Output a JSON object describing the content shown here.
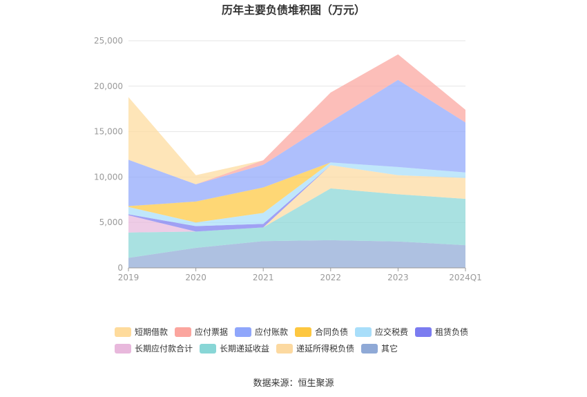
{
  "chart_data": {
    "type": "area",
    "stacked": true,
    "title": "历年主要负债堆积图（万元）",
    "categories": [
      "2019",
      "2020",
      "2021",
      "2022",
      "2023",
      "2024Q1"
    ],
    "y_ticks": [
      "0",
      "5,000",
      "10,000",
      "15,000",
      "20,000",
      "25,000"
    ],
    "ylim": [
      0,
      25000
    ],
    "grid": true,
    "legend_position": "bottom",
    "series": [
      {
        "name": "其它",
        "color": "#8fa9d6",
        "values": [
          1100,
          2200,
          2950,
          3050,
          2900,
          2500
        ]
      },
      {
        "name": "长期递延收益",
        "color": "#88d6d6",
        "values": [
          2800,
          1800,
          1500,
          5700,
          5200,
          5100
        ]
      },
      {
        "name": "长期应付款合计",
        "color": "#e8b8dc",
        "values": [
          1900,
          0,
          0,
          0,
          0,
          0
        ]
      },
      {
        "name": "递延所得税负债",
        "color": "#fcd9a0",
        "values": [
          0,
          0,
          0,
          2550,
          2100,
          2300
        ]
      },
      {
        "name": "租赁负债",
        "color": "#7b7cf0",
        "values": [
          100,
          600,
          400,
          0,
          0,
          0
        ]
      },
      {
        "name": "应交税费",
        "color": "#a8defa",
        "values": [
          800,
          400,
          1200,
          300,
          900,
          600
        ]
      },
      {
        "name": "合同负债",
        "color": "#fdc740",
        "values": [
          100,
          2300,
          2800,
          0,
          0,
          0
        ]
      },
      {
        "name": "应付账款",
        "color": "#8fa6fb",
        "values": [
          5100,
          1900,
          2500,
          4500,
          9600,
          5500
        ]
      },
      {
        "name": "应付票据",
        "color": "#fba59e",
        "values": [
          0,
          0,
          500,
          3200,
          2800,
          1400
        ]
      },
      {
        "name": "短期借款",
        "color": "#fedb9c",
        "values": [
          6900,
          1000,
          0,
          0,
          0,
          0
        ]
      }
    ],
    "legend": [
      {
        "name": "短期借款",
        "color": "#fedb9c"
      },
      {
        "name": "应付票据",
        "color": "#fba59e"
      },
      {
        "name": "应付账款",
        "color": "#8fa6fb"
      },
      {
        "name": "合同负债",
        "color": "#fdc740"
      },
      {
        "name": "应交税费",
        "color": "#a8defa"
      },
      {
        "name": "租赁负债",
        "color": "#7b7cf0"
      },
      {
        "name": "长期应付款合计",
        "color": "#e8b8dc"
      },
      {
        "name": "长期递延收益",
        "color": "#88d6d6"
      },
      {
        "name": "递延所得税负债",
        "color": "#fcd9a0"
      },
      {
        "name": "其它",
        "color": "#8fa9d6"
      }
    ],
    "source": "数据来源：恒生聚源"
  }
}
